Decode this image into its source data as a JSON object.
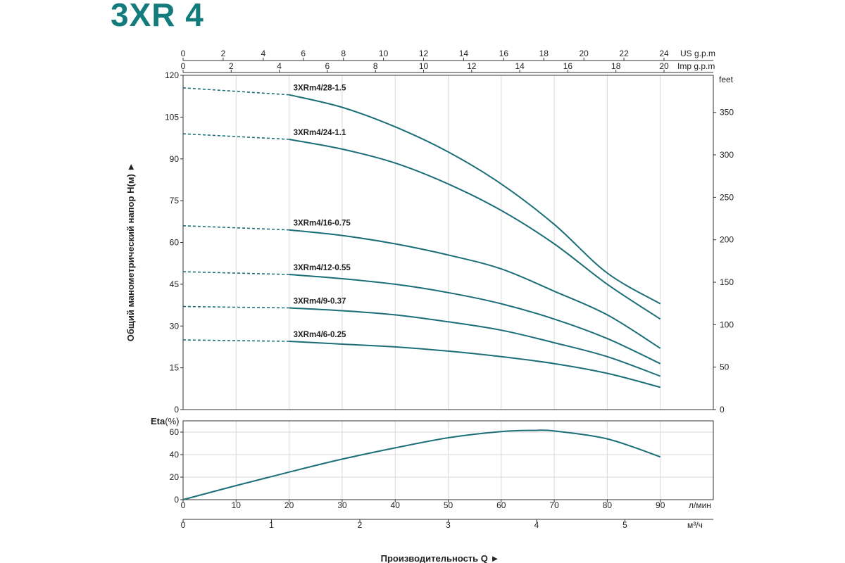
{
  "title": "3XR 4",
  "colors": {
    "title": "#137b7b",
    "curve": "#1b6e78",
    "grid": "#d9d9d9",
    "frame": "#333333"
  },
  "chart_data": [
    {
      "type": "line",
      "name": "head",
      "x_unit": "л/мин",
      "xlim": [
        0,
        100
      ],
      "ylim": [
        0,
        120
      ],
      "y_ticks": [
        0,
        15,
        30,
        45,
        60,
        75,
        90,
        105,
        120
      ],
      "y_right_label": "feet",
      "y_right_ticks": [
        0,
        50,
        100,
        150,
        200,
        250,
        300,
        350
      ],
      "top_axes": [
        {
          "label": "US g.p.m",
          "ticks": [
            0,
            2,
            4,
            6,
            8,
            10,
            12,
            14,
            16,
            18,
            20,
            22,
            24
          ]
        },
        {
          "label": "Imp g.p.m",
          "ticks": [
            0,
            2,
            4,
            6,
            8,
            10,
            12,
            14,
            16,
            18,
            20
          ]
        }
      ],
      "ylabel": "Общий манометрический напор H(м) ►",
      "dashed_until_x": 20,
      "series": [
        {
          "name": "3XRm4/28-1.5",
          "x": [
            0,
            20,
            30,
            40,
            50,
            60,
            70,
            80,
            90
          ],
          "y": [
            115.5,
            113,
            108.5,
            101.5,
            92.5,
            81,
            66.5,
            49,
            38
          ]
        },
        {
          "name": "3XRm4/24-1.1",
          "x": [
            0,
            20,
            30,
            40,
            50,
            60,
            70,
            80,
            90
          ],
          "y": [
            99,
            97,
            93.5,
            88.5,
            81,
            71.5,
            59.5,
            45,
            32.5
          ]
        },
        {
          "name": "3XRm4/16-0.75",
          "x": [
            0,
            20,
            30,
            40,
            50,
            60,
            70,
            80,
            90
          ],
          "y": [
            66,
            64.5,
            62.5,
            59.5,
            55.5,
            50.5,
            42.5,
            34,
            22
          ]
        },
        {
          "name": "3XRm4/12-0.55",
          "x": [
            0,
            20,
            30,
            40,
            50,
            60,
            70,
            80,
            90
          ],
          "y": [
            49.5,
            48.5,
            47,
            45,
            42,
            38,
            32.5,
            25.5,
            16.5
          ]
        },
        {
          "name": "3XRm4/9-0.37",
          "x": [
            0,
            20,
            30,
            40,
            50,
            60,
            70,
            80,
            90
          ],
          "y": [
            37,
            36.5,
            35.5,
            34,
            31.5,
            28.5,
            24,
            19,
            12
          ]
        },
        {
          "name": "3XRm4/6-0.25",
          "x": [
            0,
            20,
            30,
            40,
            50,
            60,
            70,
            80,
            90
          ],
          "y": [
            25,
            24.5,
            23.5,
            22.5,
            21,
            19,
            16.5,
            13,
            8
          ]
        }
      ]
    },
    {
      "type": "line",
      "name": "efficiency",
      "ylabel": "Eta",
      "ylabel_unit": "(%)",
      "ylim": [
        0,
        70
      ],
      "y_ticks": [
        0,
        20,
        40,
        60
      ],
      "series": [
        {
          "x": [
            0,
            10,
            20,
            30,
            40,
            50,
            60,
            66,
            70,
            80,
            90
          ],
          "y": [
            0,
            12.5,
            24.5,
            36,
            46,
            55,
            60.5,
            61.5,
            61,
            54,
            38
          ]
        }
      ]
    }
  ],
  "x_axis_lpm": {
    "unit": "л/мин",
    "ticks": [
      0,
      10,
      20,
      30,
      40,
      50,
      60,
      70,
      80,
      90
    ]
  },
  "x_axis_m3h": {
    "unit": "м³/ч",
    "ticks": [
      0,
      1,
      2,
      3,
      4,
      5
    ]
  },
  "xlabel": "Производительность  Q  ►"
}
